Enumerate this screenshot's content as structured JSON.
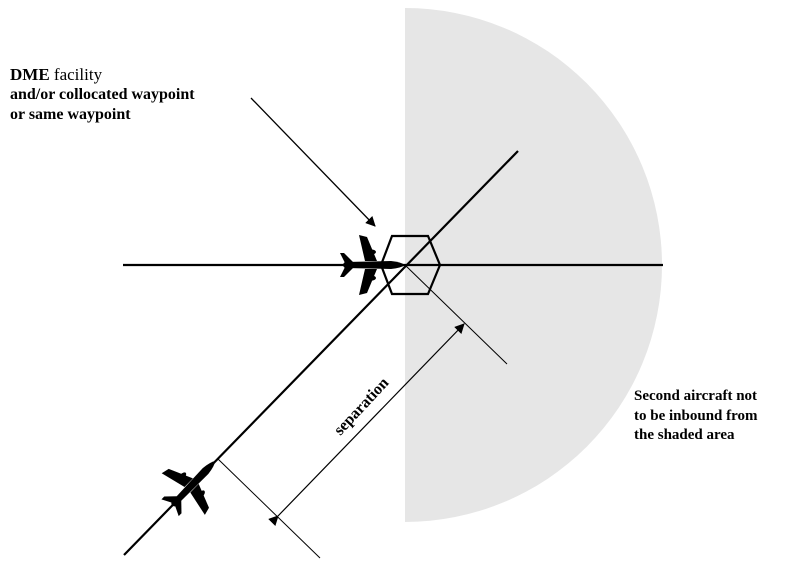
{
  "labels": {
    "facility_dme": "DME",
    "facility_rest": " facility",
    "facility_line2": "and/or collocated waypoint",
    "facility_line3": "or same waypoint",
    "separation": "separation",
    "shaded_line1": "Second aircraft not",
    "shaded_line2": "to be inbound  from",
    "shaded_line3": "the shaded area"
  },
  "icons": {
    "aircraft_first": "airplane-icon",
    "aircraft_second": "airplane-icon",
    "facility_marker": "hexagon-icon"
  },
  "colors": {
    "shaded_area": "#e6e6e6",
    "lines": "#000000"
  }
}
